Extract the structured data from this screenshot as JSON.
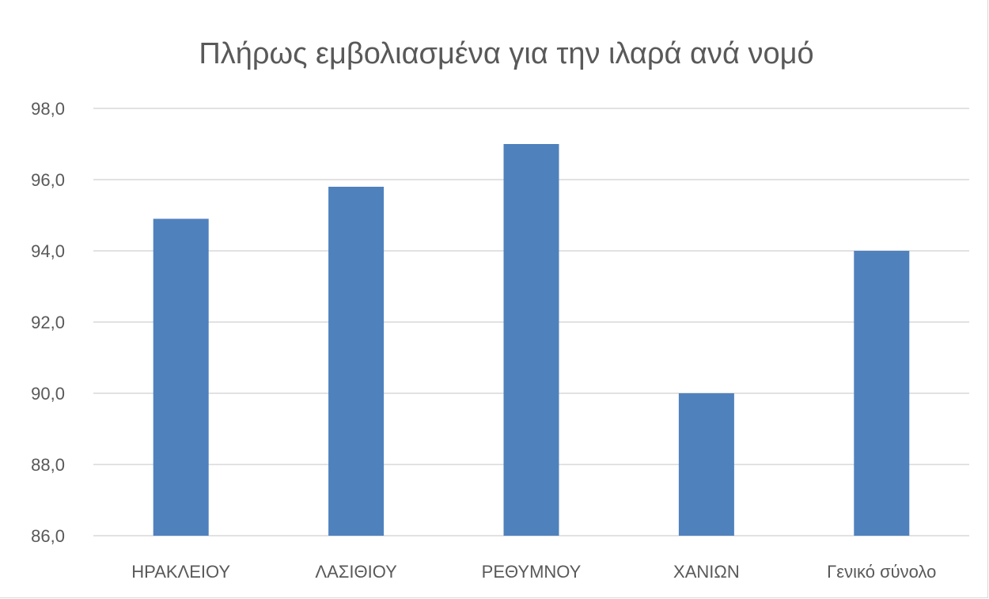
{
  "chart_data": {
    "type": "bar",
    "title": "Πλήρως εμβολιασμένα για την ιλαρά ανά νομό",
    "xlabel": "",
    "ylabel": "",
    "categories": [
      "ΗΡΑΚΛΕΙΟΥ",
      "ΛΑΣΙΘΙΟΥ",
      "ΡΕΘΥΜΝΟΥ",
      "ΧΑΝΙΩΝ",
      "Γενικό σύνολο"
    ],
    "values": [
      94.9,
      95.8,
      97.0,
      90.0,
      94.0
    ],
    "ylim": [
      86.0,
      98.0
    ],
    "yticks": [
      "86,0",
      "88,0",
      "90,0",
      "92,0",
      "94,0",
      "96,0",
      "98,0"
    ],
    "grid": true,
    "legend": "none",
    "bar_color": "#4f81bd"
  }
}
